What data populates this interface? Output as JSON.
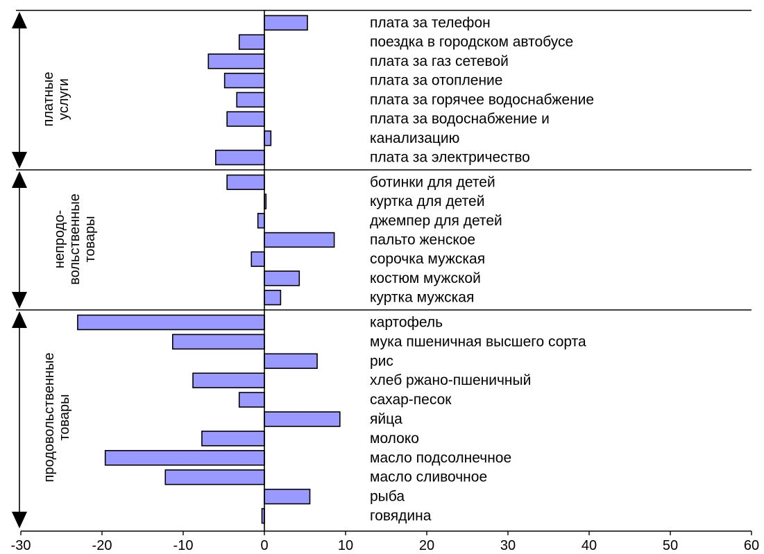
{
  "chart_data": {
    "type": "bar",
    "orientation": "horizontal",
    "xlim": [
      -30,
      60
    ],
    "xticks": [
      -30,
      -20,
      -10,
      0,
      10,
      20,
      30,
      40,
      50,
      60
    ],
    "bar_color": "#9999ff",
    "bar_edge_color": "#000000",
    "rows": [
      {
        "label": "плата  за телефон",
        "value": 5.3
      },
      {
        "label": "поездка в городском автобусе",
        "value": -3.1
      },
      {
        "label": "плата  за газ сетевой",
        "value": -6.9
      },
      {
        "label": "плата  за отопление",
        "value": -4.9
      },
      {
        "label": "плата  за горячее водоснабжение",
        "value": -3.4
      },
      {
        "label": "плата  за водоснабжение и",
        "value": -4.6
      },
      {
        "label": "канализацию",
        "value": 0.8
      },
      {
        "label": "плата  за электричество",
        "value": -6.0
      },
      {
        "label": "ботинки для детей",
        "value": -4.6
      },
      {
        "label": "куртка для детей",
        "value": 0.2
      },
      {
        "label": "джемпер для детей",
        "value": -0.8
      },
      {
        "label": "пальто женское",
        "value": 8.6
      },
      {
        "label": "сорочка мужская",
        "value": -1.6
      },
      {
        "label": "костюм мужской",
        "value": 4.3
      },
      {
        "label": "куртка мужская",
        "value": 2.0
      },
      {
        "label": "картофель",
        "value": -23.0
      },
      {
        "label": "мука пшеничная   высшего сорта",
        "value": -11.3
      },
      {
        "label": "рис",
        "value": 6.5
      },
      {
        "label": "хлеб ржано-пшеничный",
        "value": -8.8
      },
      {
        "label": "сахар-песок",
        "value": -3.1
      },
      {
        "label": "яйца",
        "value": 9.3
      },
      {
        "label": "молоко",
        "value": -7.7
      },
      {
        "label": "масло подсолнечное",
        "value": -19.6
      },
      {
        "label": "масло сливочное",
        "value": -12.2
      },
      {
        "label": "рыба",
        "value": 5.6
      },
      {
        "label": "говядина",
        "value": -0.3
      }
    ],
    "groups": [
      {
        "lines": [
          "платные",
          "услуги"
        ],
        "first_row": 0,
        "last_row": 7
      },
      {
        "lines": [
          "непродо-",
          "вольственные",
          "товары"
        ],
        "first_row": 8,
        "last_row": 14
      },
      {
        "lines": [
          "продовольственные",
          "товары"
        ],
        "first_row": 15,
        "last_row": 25
      }
    ]
  }
}
